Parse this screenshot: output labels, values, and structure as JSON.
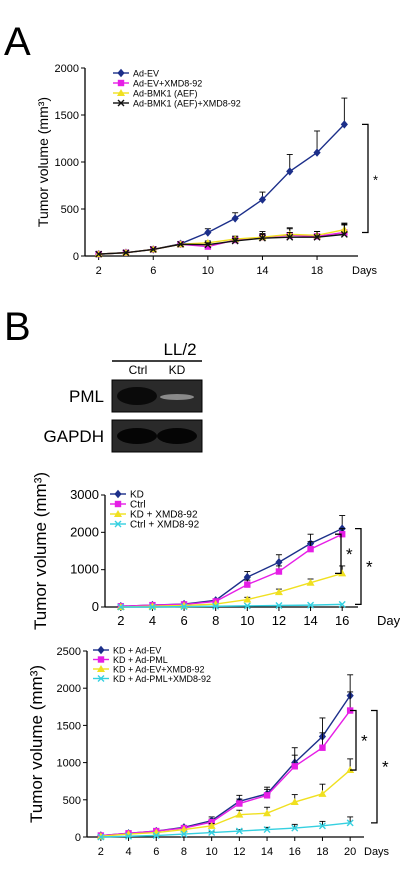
{
  "panel_labels": {
    "a": "A",
    "b": "B"
  },
  "blot": {
    "header": "LL/2",
    "columns": [
      "Ctrl",
      "KD"
    ],
    "rows": [
      "PML",
      "GAPDH"
    ]
  },
  "sig": "*",
  "chart_data": [
    {
      "type": "line",
      "id": "A",
      "ylabel": "Tumor volume (mm³)",
      "xlabel": "Days",
      "ylim": [
        0,
        2000
      ],
      "yticks": [
        0,
        500,
        1000,
        1500,
        2000
      ],
      "xlim": [
        1,
        21
      ],
      "xticks": [
        2,
        6,
        10,
        14,
        18
      ],
      "grid": false,
      "legend": "top-left",
      "x": [
        2,
        4,
        6,
        8,
        10,
        12,
        14,
        16,
        18,
        20
      ],
      "series": [
        {
          "name": "Ad-EV",
          "color": "#1c2f8a",
          "marker": "diamond",
          "values": [
            20,
            35,
            70,
            130,
            250,
            400,
            600,
            900,
            1100,
            1400
          ],
          "err": [
            0,
            0,
            0,
            0,
            40,
            60,
            80,
            180,
            230,
            280
          ]
        },
        {
          "name": "Ad-EV+XMD8-92",
          "color": "#e61ee6",
          "marker": "square",
          "values": [
            20,
            35,
            70,
            125,
            100,
            170,
            200,
            220,
            210,
            250
          ],
          "err": [
            0,
            0,
            0,
            0,
            20,
            40,
            60,
            80,
            50,
            80
          ]
        },
        {
          "name": "Ad-BMK1 (AEF)",
          "color": "#f0e020",
          "marker": "triangle",
          "values": [
            20,
            35,
            70,
            125,
            140,
            180,
            200,
            230,
            220,
            280
          ],
          "err": [
            0,
            0,
            0,
            0,
            20,
            30,
            40,
            60,
            40,
            60
          ]
        },
        {
          "name": "Ad-BMK1 (AEF)+XMD8-92",
          "color": "#111111",
          "marker": "cross",
          "values": [
            20,
            35,
            70,
            125,
            120,
            160,
            190,
            200,
            200,
            230
          ],
          "err": [
            0,
            0,
            0,
            0,
            20,
            30,
            40,
            50,
            60,
            120
          ]
        }
      ]
    },
    {
      "type": "line",
      "id": "B1",
      "ylabel": "Tumor volume (mm³)",
      "xlabel": "Days",
      "ylim": [
        0,
        3000
      ],
      "yticks": [
        0,
        1000,
        2000,
        3000
      ],
      "xlim": [
        1,
        17
      ],
      "xticks": [
        2,
        4,
        6,
        8,
        10,
        12,
        14,
        16
      ],
      "grid": false,
      "legend": "top-left",
      "x": [
        2,
        4,
        6,
        8,
        10,
        12,
        14,
        16
      ],
      "series": [
        {
          "name": "KD",
          "color": "#1c2f8a",
          "marker": "diamond",
          "values": [
            20,
            50,
            80,
            180,
            800,
            1200,
            1700,
            2100
          ],
          "err": [
            0,
            0,
            0,
            0,
            150,
            200,
            250,
            350
          ]
        },
        {
          "name": "Ctrl",
          "color": "#e61ee6",
          "marker": "square",
          "values": [
            20,
            50,
            70,
            150,
            600,
            950,
            1550,
            1950
          ],
          "err": [
            0,
            0,
            0,
            0,
            120,
            150,
            200,
            150
          ]
        },
        {
          "name": "KD + XMD8-92",
          "color": "#f0e020",
          "marker": "triangle",
          "values": [
            0,
            20,
            40,
            80,
            200,
            400,
            650,
            900
          ],
          "err": [
            0,
            0,
            0,
            0,
            60,
            80,
            100,
            200
          ]
        },
        {
          "name": "Ctrl + XMD8-92",
          "color": "#35d0e0",
          "marker": "cross",
          "values": [
            0,
            0,
            10,
            20,
            30,
            40,
            50,
            70
          ],
          "err": [
            0,
            0,
            0,
            0,
            0,
            0,
            0,
            0
          ]
        }
      ]
    },
    {
      "type": "line",
      "id": "B2",
      "ylabel": "Tumor volume (mm³)",
      "xlabel": "Days",
      "ylim": [
        0,
        2500
      ],
      "yticks": [
        0,
        500,
        1000,
        1500,
        2000,
        2500
      ],
      "xlim": [
        1,
        21
      ],
      "xticks": [
        2,
        4,
        6,
        8,
        10,
        12,
        14,
        16,
        18,
        20
      ],
      "grid": false,
      "legend": "top-left",
      "x": [
        2,
        4,
        6,
        8,
        10,
        12,
        14,
        16,
        18,
        20
      ],
      "series": [
        {
          "name": "KD + Ad-EV",
          "color": "#1c2f8a",
          "marker": "diamond",
          "values": [
            20,
            50,
            80,
            130,
            220,
            480,
            580,
            1000,
            1350,
            1900
          ],
          "err": [
            0,
            0,
            0,
            0,
            50,
            80,
            90,
            200,
            250,
            280
          ]
        },
        {
          "name": "KD + Ad-PML",
          "color": "#e61ee6",
          "marker": "square",
          "values": [
            20,
            50,
            80,
            120,
            200,
            450,
            560,
            950,
            1200,
            1700
          ],
          "err": [
            0,
            0,
            0,
            0,
            40,
            60,
            80,
            150,
            200,
            250
          ]
        },
        {
          "name": "KD + Ad-EV+XMD8-92",
          "color": "#f0e020",
          "marker": "triangle",
          "values": [
            10,
            40,
            60,
            100,
            150,
            300,
            320,
            470,
            580,
            900
          ],
          "err": [
            0,
            0,
            0,
            0,
            30,
            60,
            80,
            100,
            130,
            150
          ]
        },
        {
          "name": "KD + Ad-PML+XMD8-92",
          "color": "#35d0e0",
          "marker": "cross",
          "values": [
            0,
            10,
            20,
            40,
            60,
            80,
            100,
            120,
            150,
            190
          ],
          "err": [
            0,
            0,
            0,
            0,
            10,
            20,
            30,
            50,
            60,
            80
          ]
        }
      ]
    }
  ]
}
